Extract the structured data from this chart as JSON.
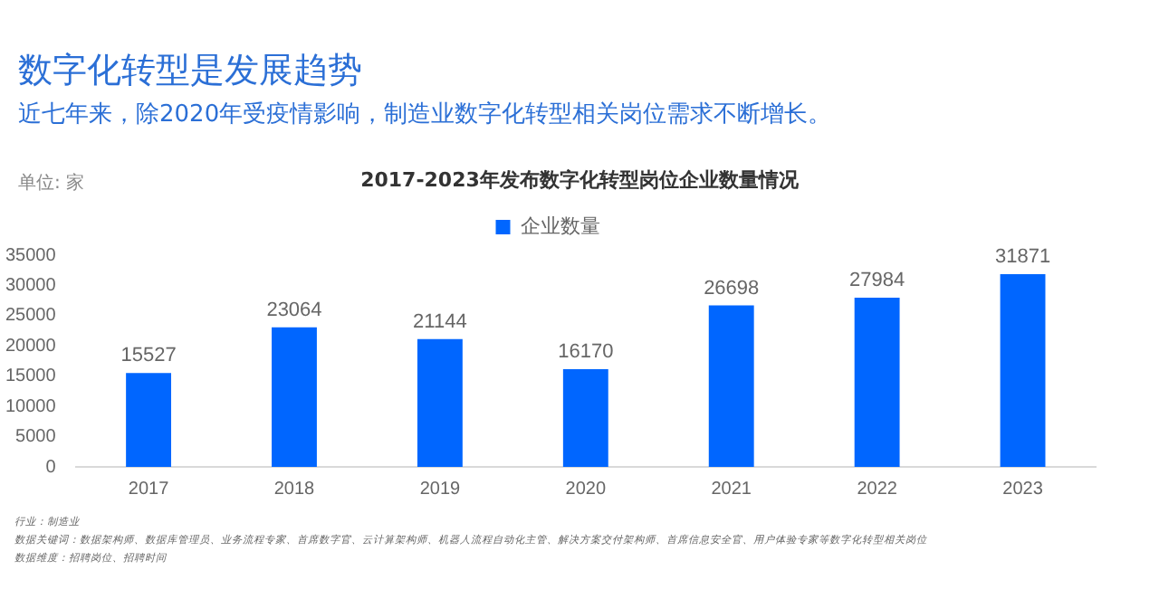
{
  "chart_data": {
    "type": "bar",
    "title": "数字化转型是发展趋势",
    "subtitle": "近七年来，除2020年受疫情影响，制造业数字化转型相关岗位需求不断增长。",
    "ylabel": "单位: 家",
    "annotations": [
      "2017-2023年发布数字化转型岗位企业数量情况",
      "行业：制造业",
      "数据关键词：数据架构师、数据库管理员、业务流程专家、首席数字官、云计算架构师、机器人流程自动化主管、解决方案交付架构师、首席信息安全官、用户体验专家等数字化转型相关岗位",
      "数据维度：招聘岗位、招聘时间"
    ],
    "categories": [
      "2017",
      "2018",
      "2019",
      "2020",
      "2021",
      "2022",
      "2023"
    ],
    "series": [
      {
        "name": "企业数量",
        "color": "#0066ff",
        "values": [
          15527,
          23064,
          21144,
          16170,
          26698,
          27984,
          31871
        ]
      }
    ],
    "ylim": [
      0,
      35000
    ],
    "yticks": [
      0,
      5000,
      10000,
      15000,
      20000,
      25000,
      30000,
      35000
    ],
    "grid": false,
    "legend": "top",
    "data_labels": true
  }
}
